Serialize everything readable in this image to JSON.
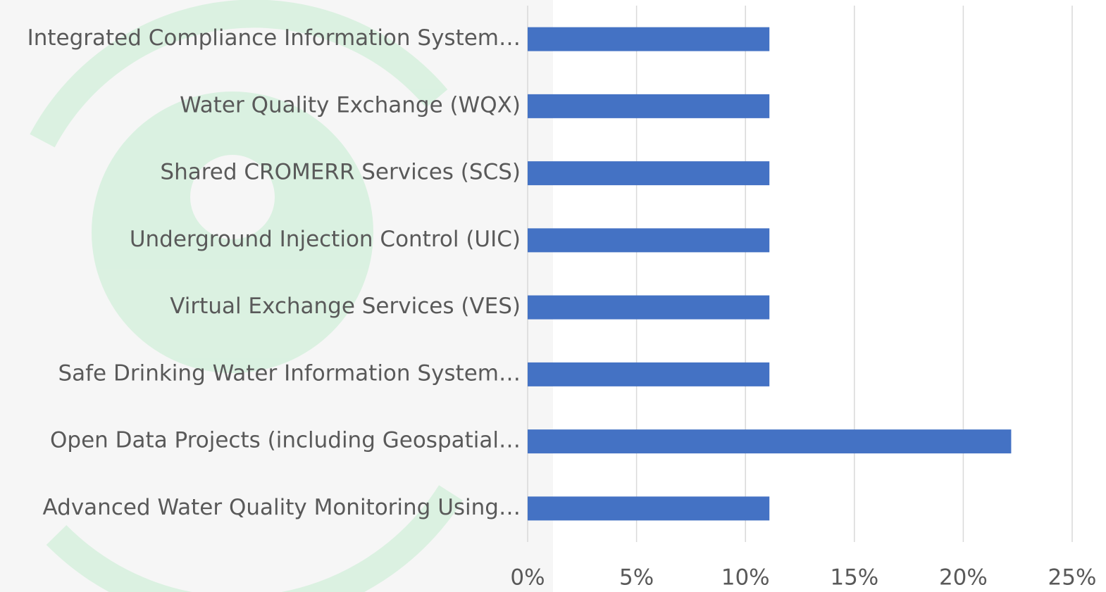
{
  "chart_data": {
    "type": "barh",
    "categories": [
      "Integrated Compliance Information System…",
      "Water Quality Exchange (WQX)",
      "Shared CROMERR Services (SCS)",
      "Underground Injection Control (UIC)",
      "Virtual Exchange Services (VES)",
      "Safe Drinking Water Information System…",
      "Open Data Projects (including Geospatial…",
      "Advanced Water Quality Monitoring Using…"
    ],
    "values": [
      11.1,
      11.1,
      11.1,
      11.1,
      11.1,
      11.1,
      22.2,
      11.1
    ],
    "color": "#4472c4",
    "xlim": [
      0,
      25
    ],
    "xticks": [
      {
        "value": 0,
        "label": "0%"
      },
      {
        "value": 5,
        "label": "5%"
      },
      {
        "value": 10,
        "label": "10%"
      },
      {
        "value": 15,
        "label": "15%"
      },
      {
        "value": 20,
        "label": "20%"
      },
      {
        "value": 25,
        "label": "25%"
      }
    ],
    "grid": true
  }
}
